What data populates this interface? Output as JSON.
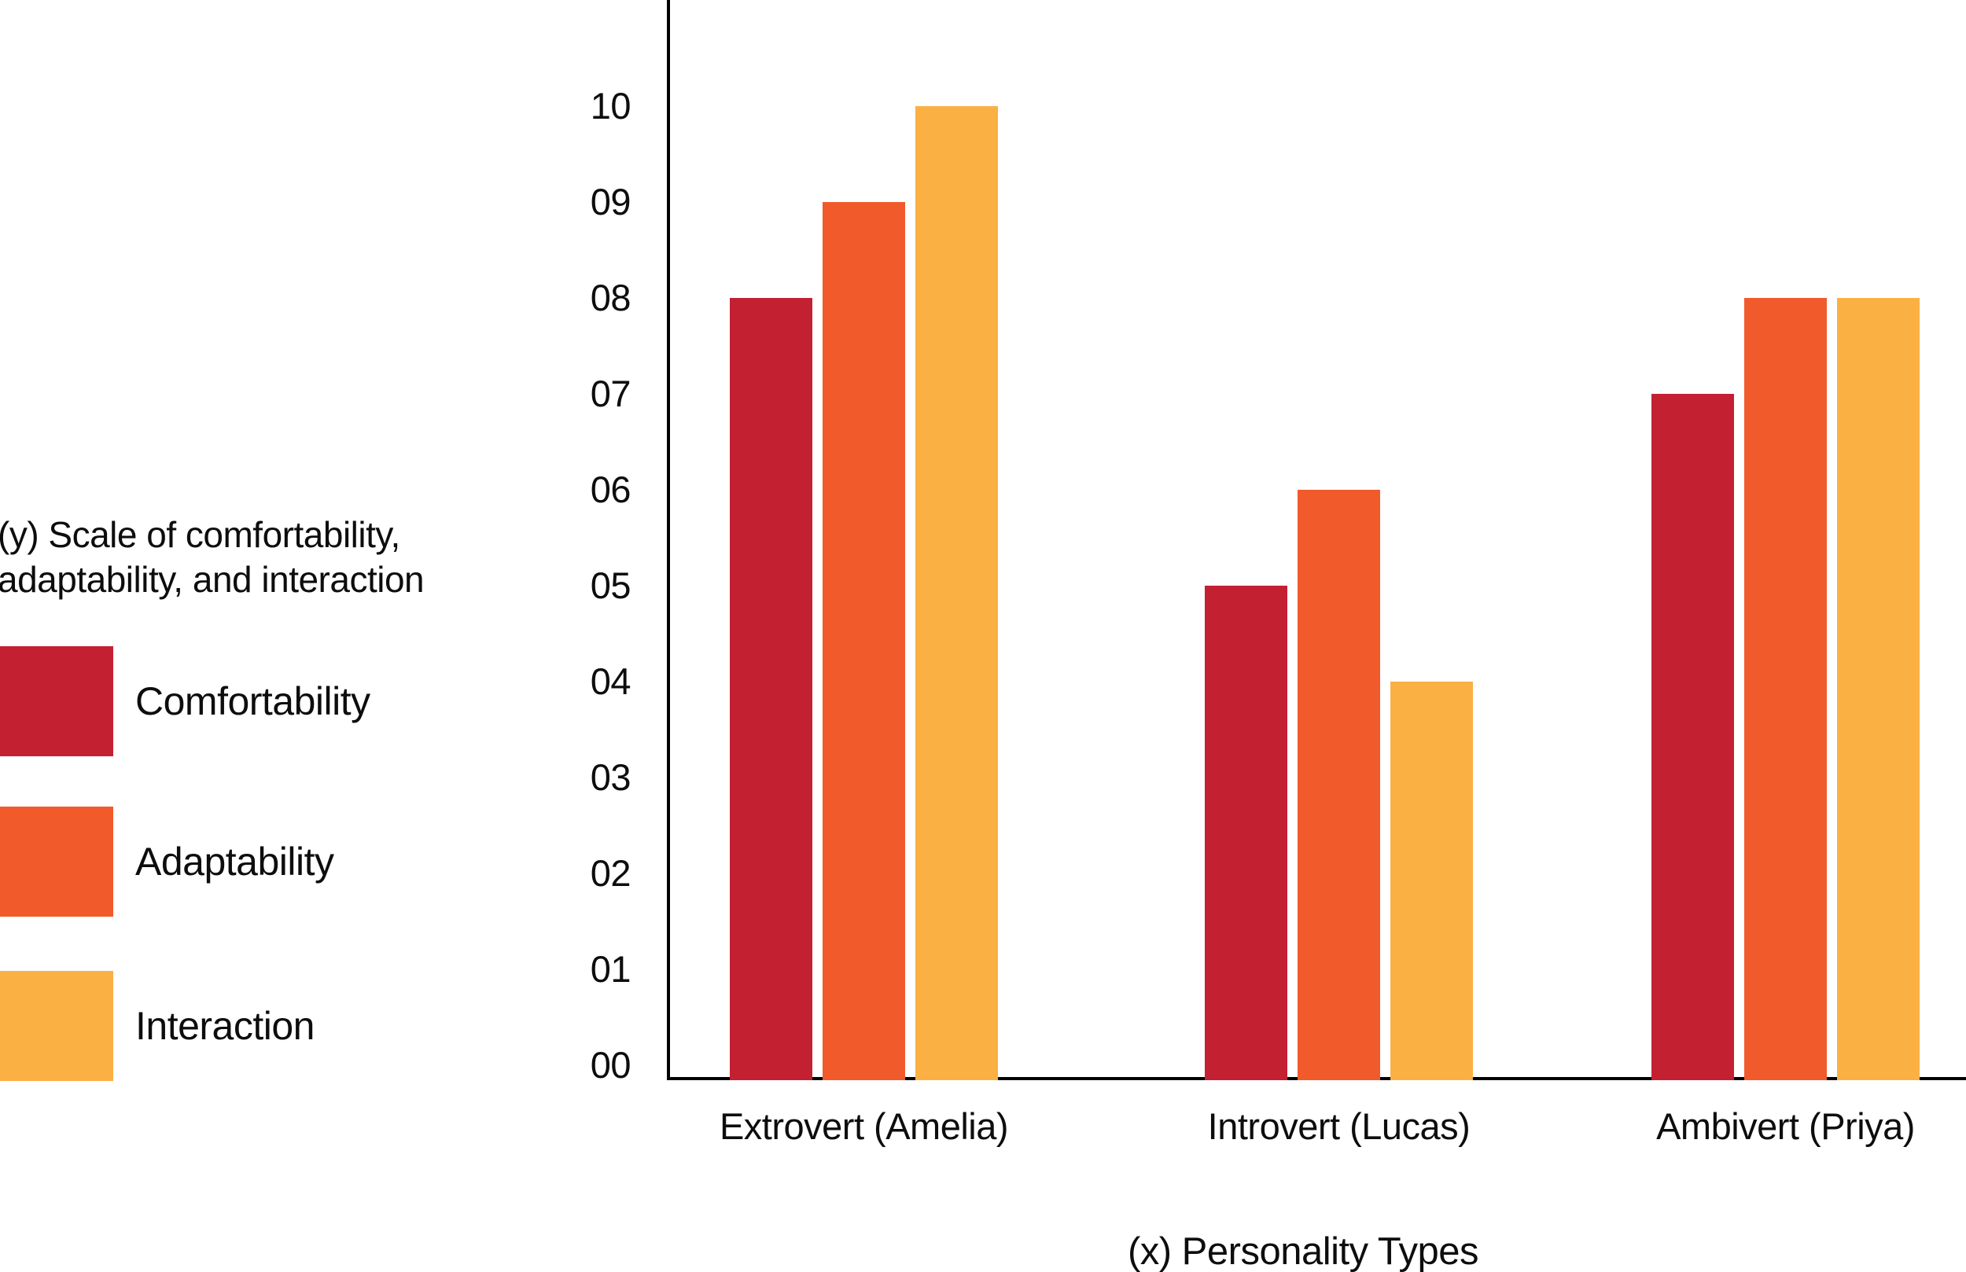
{
  "chart_data": {
    "type": "bar",
    "categories": [
      "Extrovert (Amelia)",
      "Introvert (Lucas)",
      "Ambivert (Priya)"
    ],
    "series": [
      {
        "name": "Comfortability",
        "color": "#C32032",
        "values": [
          8,
          5,
          7
        ]
      },
      {
        "name": "Adaptability",
        "color": "#F15A2B",
        "values": [
          9,
          6,
          8
        ]
      },
      {
        "name": "Interaction",
        "color": "#FBB044",
        "values": [
          10,
          4,
          8
        ]
      }
    ],
    "xlabel": "(x) Personality Types",
    "ylabel_line1": "(y) Scale of comfortability,",
    "ylabel_line2": "adaptability, and interaction",
    "y_ticks": [
      "00",
      "01",
      "02",
      "03",
      "04",
      "05",
      "06",
      "07",
      "08",
      "09",
      "10"
    ],
    "ylim": [
      0,
      10
    ],
    "grid": false,
    "legend_position": "left",
    "axis_color": "#000000",
    "text_color": "#0d0d0d",
    "background_color": "#ffffff"
  }
}
